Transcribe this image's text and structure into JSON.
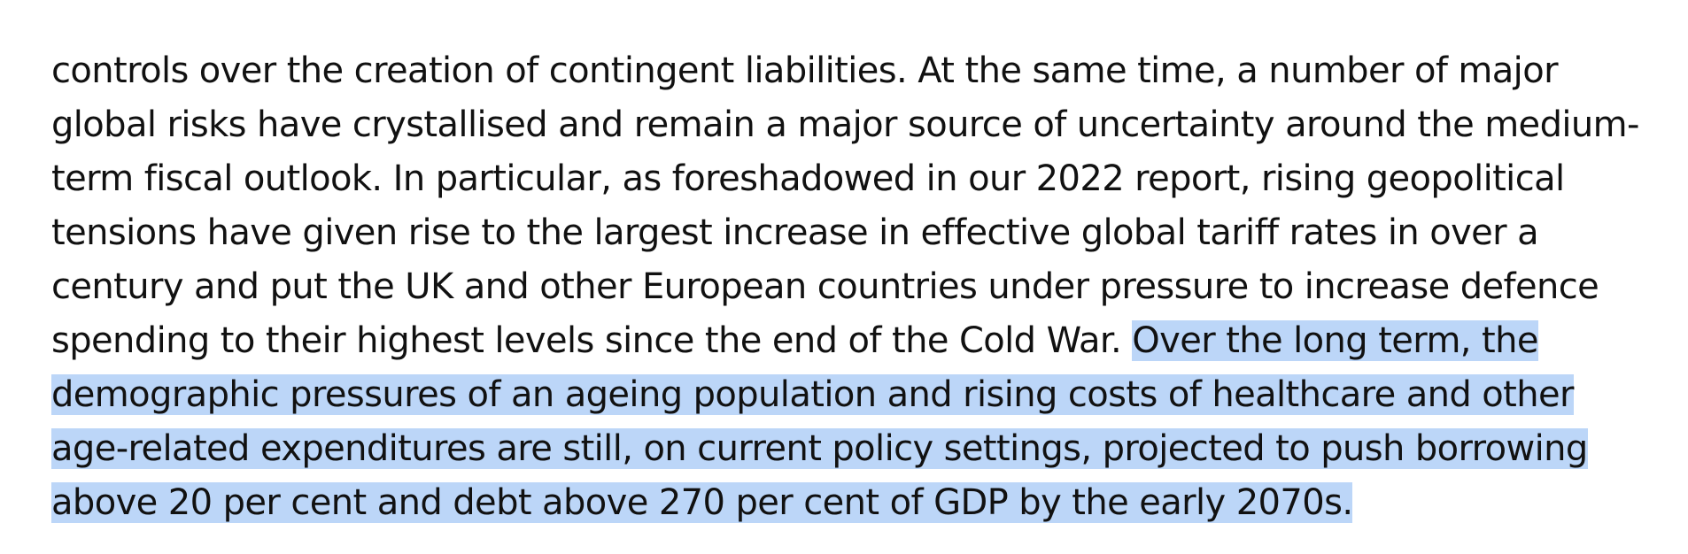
{
  "document": {
    "lines": [
      "controls over the creation of contingent liabilities. At the same time, a number of major",
      "global risks have crystallised and remain a major source of uncertainty around the medium-",
      "term fiscal outlook. In particular, as foreshadowed in our 2022 report, rising geopolitical",
      "tensions have given rise to the largest increase in effective global tariff rates in over a",
      "century and put the UK and other European countries under pressure to increase defence"
    ],
    "line6_plain": "spending to their highest levels since the end of the Cold War. ",
    "line6_selected": "Over the long term, the",
    "selected_lines": [
      "demographic pressures of an ageing population and rising costs of healthcare and other",
      "age-related expenditures are still, on current policy settings, projected to push borrowing",
      "above 20 per cent and debt above 270 per cent of GDP by the early 2070s."
    ],
    "selection_color": "#bcd6f8"
  }
}
